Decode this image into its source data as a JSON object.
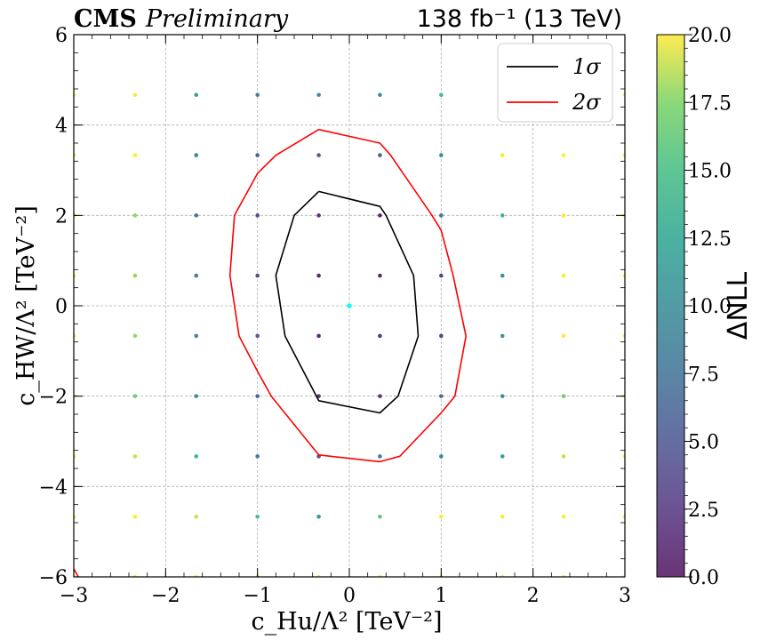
{
  "chart_data": {
    "type": "scatter",
    "header": {
      "experiment": "CMS",
      "status": "Preliminary",
      "lumi": "138 fb⁻¹ (13 TeV)"
    },
    "xlabel": "c_Hu/Λ² [TeV⁻²]",
    "ylabel": "c_HW/Λ² [TeV⁻²]",
    "xlim": [
      -3,
      3
    ],
    "ylim": [
      -6,
      6
    ],
    "xticks": [
      -3,
      -2,
      -1,
      0,
      1,
      2,
      3
    ],
    "yticks": [
      -6,
      -4,
      -2,
      0,
      2,
      4,
      6
    ],
    "x_tick_labels": [
      "−3",
      "−2",
      "−1",
      "0",
      "1",
      "2",
      "3"
    ],
    "y_tick_labels": [
      "−6",
      "−4",
      "−2",
      "0",
      "2",
      "4",
      "6"
    ],
    "grid": true,
    "colorbar": {
      "label": "ΔNLL",
      "range": [
        0,
        20
      ],
      "ticks": [
        0,
        2.5,
        5,
        7.5,
        10,
        12.5,
        15,
        17.5,
        20
      ],
      "tick_labels": [
        "0.0",
        "2.5",
        "5.0",
        "7.5",
        "10.0",
        "12.5",
        "15.0",
        "17.5",
        "20.0"
      ],
      "colormap": "viridis"
    },
    "best_fit": {
      "x": 0,
      "y": 0,
      "color": "#00ffff"
    },
    "grid_x": [
      -3,
      -2.333,
      -1.667,
      -1,
      -0.333,
      0.333,
      1,
      1.667,
      2.333,
      3
    ],
    "grid_y": [
      -6,
      -4.667,
      -3.333,
      -2,
      -0.667,
      0.667,
      2,
      3.333,
      4.667
    ],
    "nll_grid": [
      [
        20,
        20,
        20,
        20,
        20,
        20,
        20,
        20,
        20,
        20
      ],
      [
        20,
        20,
        19,
        15,
        11,
        16,
        20,
        20,
        20,
        20
      ],
      [
        20,
        19,
        14,
        8,
        4,
        8,
        9,
        12,
        19,
        20
      ],
      [
        20,
        17,
        10,
        6,
        2,
        2,
        7,
        10,
        17,
        20
      ],
      [
        20,
        18,
        9,
        5,
        1,
        2,
        3,
        11,
        20,
        20
      ],
      [
        20,
        18,
        8,
        4,
        1,
        1,
        3,
        10,
        20,
        20
      ],
      [
        20,
        18,
        8,
        4,
        2,
        1,
        8,
        14,
        20,
        20
      ],
      [
        20,
        20,
        9,
        6,
        5,
        5,
        10,
        20,
        20,
        20
      ],
      [
        20,
        20,
        12,
        9,
        10,
        10,
        15,
        20,
        20,
        20
      ]
    ],
    "series": [
      {
        "name": "1σ",
        "color": "#000000",
        "x": [
          -0.333,
          0.333,
          0.4,
          0.7,
          0.75,
          0.53,
          0.333,
          -0.333,
          -0.7,
          -0.8,
          -0.6,
          -0.333
        ],
        "y": [
          2.53,
          2.2,
          2.0,
          0.67,
          -0.67,
          -2.0,
          -2.37,
          -2.1,
          -0.67,
          0.67,
          2.0,
          2.53
        ]
      },
      {
        "name": "2σ",
        "color": "#ff0000",
        "x": [
          -0.333,
          0.333,
          0.45,
          0.9,
          1.0,
          1.13,
          1.27,
          1.15,
          1.0,
          0.55,
          0.333,
          -0.333,
          -0.85,
          -1.0,
          -1.2,
          -1.3,
          -1.25,
          -1.0,
          -0.8,
          -0.333
        ],
        "y": [
          3.9,
          3.6,
          3.33,
          2.0,
          1.67,
          0.67,
          -0.67,
          -2.0,
          -2.37,
          -3.33,
          -3.45,
          -3.3,
          -2.0,
          -1.45,
          -0.67,
          0.67,
          2.0,
          2.93,
          3.33,
          3.9
        ]
      },
      {
        "name": "",
        "color": "#ff0000",
        "x": [
          -3.0,
          -2.95
        ],
        "y": [
          -5.82,
          -6.0
        ]
      }
    ],
    "legend": {
      "placement": "top-right",
      "entries": [
        "1σ",
        "2σ"
      ]
    }
  }
}
